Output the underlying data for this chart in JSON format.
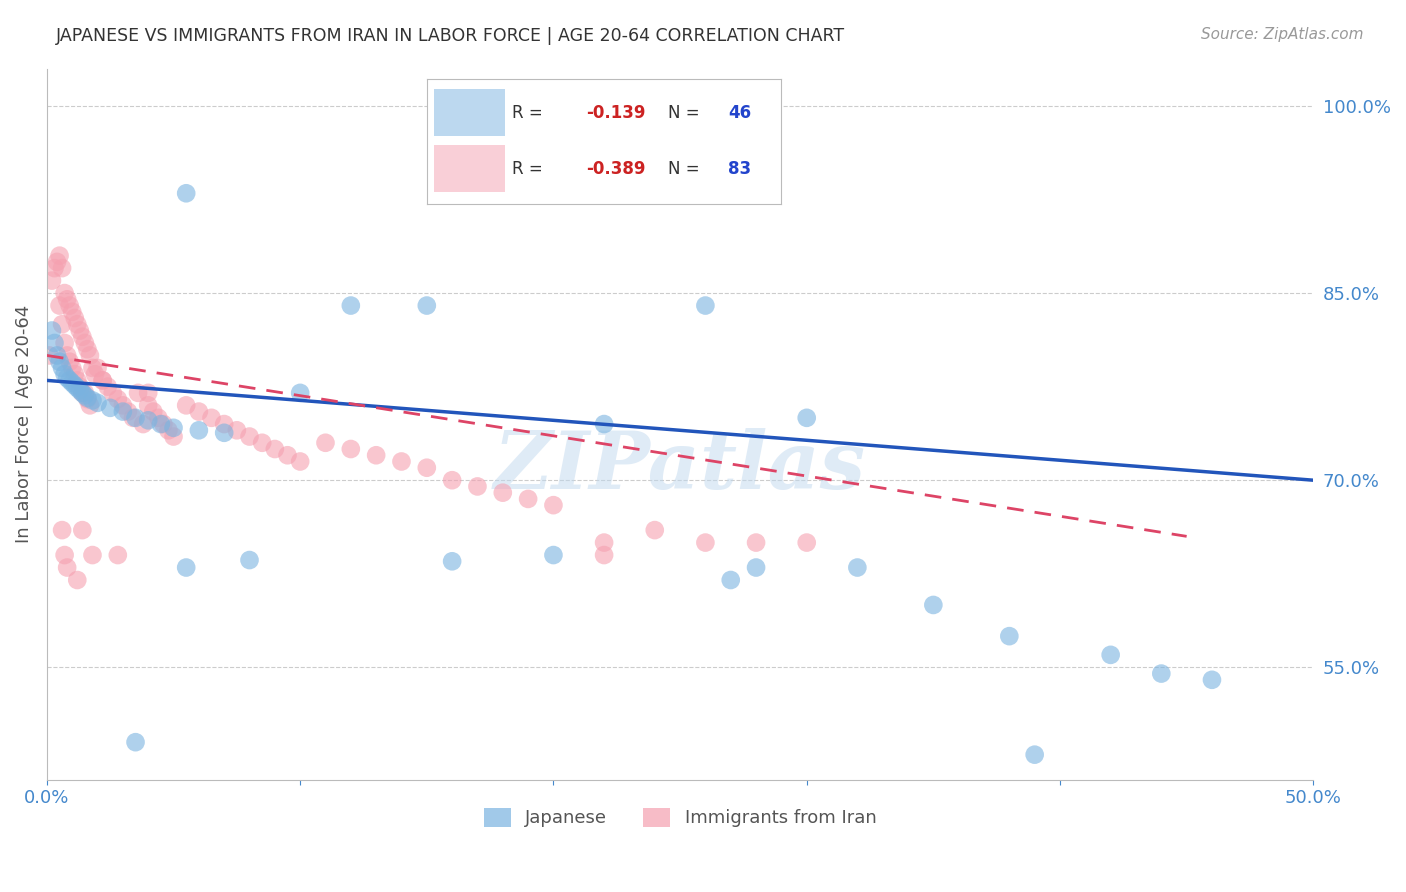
{
  "title": "JAPANESE VS IMMIGRANTS FROM IRAN IN LABOR FORCE | AGE 20-64 CORRELATION CHART",
  "source": "Source: ZipAtlas.com",
  "ylabel": "In Labor Force | Age 20-64",
  "xlim": [
    0.0,
    0.5
  ],
  "ylim": [
    0.46,
    1.03
  ],
  "yticks_right": [
    0.55,
    0.7,
    0.85,
    1.0
  ],
  "ytick_right_labels": [
    "55.0%",
    "70.0%",
    "85.0%",
    "100.0%"
  ],
  "grid_color": "#cccccc",
  "background_color": "#ffffff",
  "japanese_color": "#7ab3e0",
  "iran_color": "#f5a0b0",
  "watermark": "ZIPatlas",
  "watermark_color": "#c0d8ee",
  "title_color": "#333333",
  "axis_color": "#4488cc",
  "japanese_scatter_x": [
    0.002,
    0.003,
    0.004,
    0.005,
    0.006,
    0.007,
    0.008,
    0.009,
    0.01,
    0.011,
    0.012,
    0.013,
    0.014,
    0.015,
    0.016,
    0.018,
    0.02,
    0.025,
    0.03,
    0.035,
    0.04,
    0.045,
    0.05,
    0.055,
    0.06,
    0.07,
    0.08,
    0.1,
    0.12,
    0.15,
    0.16,
    0.2,
    0.22,
    0.26,
    0.28,
    0.3,
    0.32,
    0.35,
    0.38,
    0.42,
    0.44,
    0.46,
    0.055,
    0.27,
    0.39,
    0.035
  ],
  "japanese_scatter_y": [
    0.82,
    0.81,
    0.8,
    0.795,
    0.79,
    0.785,
    0.782,
    0.78,
    0.778,
    0.776,
    0.774,
    0.772,
    0.77,
    0.768,
    0.766,
    0.764,
    0.762,
    0.758,
    0.755,
    0.75,
    0.748,
    0.745,
    0.742,
    0.63,
    0.74,
    0.738,
    0.636,
    0.77,
    0.84,
    0.84,
    0.635,
    0.64,
    0.745,
    0.84,
    0.63,
    0.75,
    0.63,
    0.6,
    0.575,
    0.56,
    0.545,
    0.54,
    0.93,
    0.62,
    0.48,
    0.49
  ],
  "iran_scatter_x": [
    0.001,
    0.002,
    0.003,
    0.004,
    0.005,
    0.005,
    0.006,
    0.006,
    0.007,
    0.007,
    0.008,
    0.008,
    0.009,
    0.009,
    0.01,
    0.01,
    0.011,
    0.011,
    0.012,
    0.012,
    0.013,
    0.013,
    0.014,
    0.014,
    0.015,
    0.015,
    0.016,
    0.016,
    0.017,
    0.017,
    0.018,
    0.019,
    0.02,
    0.022,
    0.024,
    0.026,
    0.028,
    0.03,
    0.032,
    0.034,
    0.036,
    0.038,
    0.04,
    0.042,
    0.044,
    0.046,
    0.048,
    0.05,
    0.055,
    0.06,
    0.065,
    0.07,
    0.075,
    0.08,
    0.085,
    0.09,
    0.095,
    0.1,
    0.11,
    0.12,
    0.13,
    0.14,
    0.15,
    0.16,
    0.17,
    0.18,
    0.19,
    0.2,
    0.22,
    0.24,
    0.26,
    0.28,
    0.3,
    0.006,
    0.007,
    0.008,
    0.012,
    0.014,
    0.018,
    0.022,
    0.028,
    0.04,
    0.22
  ],
  "iran_scatter_y": [
    0.8,
    0.86,
    0.87,
    0.875,
    0.88,
    0.84,
    0.87,
    0.825,
    0.85,
    0.81,
    0.845,
    0.8,
    0.84,
    0.795,
    0.835,
    0.79,
    0.83,
    0.785,
    0.825,
    0.78,
    0.82,
    0.775,
    0.815,
    0.77,
    0.81,
    0.77,
    0.805,
    0.765,
    0.8,
    0.76,
    0.79,
    0.785,
    0.79,
    0.78,
    0.775,
    0.77,
    0.765,
    0.76,
    0.755,
    0.75,
    0.77,
    0.745,
    0.76,
    0.755,
    0.75,
    0.745,
    0.74,
    0.735,
    0.76,
    0.755,
    0.75,
    0.745,
    0.74,
    0.735,
    0.73,
    0.725,
    0.72,
    0.715,
    0.73,
    0.725,
    0.72,
    0.715,
    0.71,
    0.7,
    0.695,
    0.69,
    0.685,
    0.68,
    0.64,
    0.66,
    0.65,
    0.65,
    0.65,
    0.66,
    0.64,
    0.63,
    0.62,
    0.66,
    0.64,
    0.78,
    0.64,
    0.77,
    0.65
  ],
  "jp_trend_x0": 0.0,
  "jp_trend_y0": 0.78,
  "jp_trend_x1": 0.5,
  "jp_trend_y1": 0.7,
  "ir_trend_x0": 0.0,
  "ir_trend_y0": 0.8,
  "ir_trend_x1": 0.45,
  "ir_trend_y1": 0.655
}
